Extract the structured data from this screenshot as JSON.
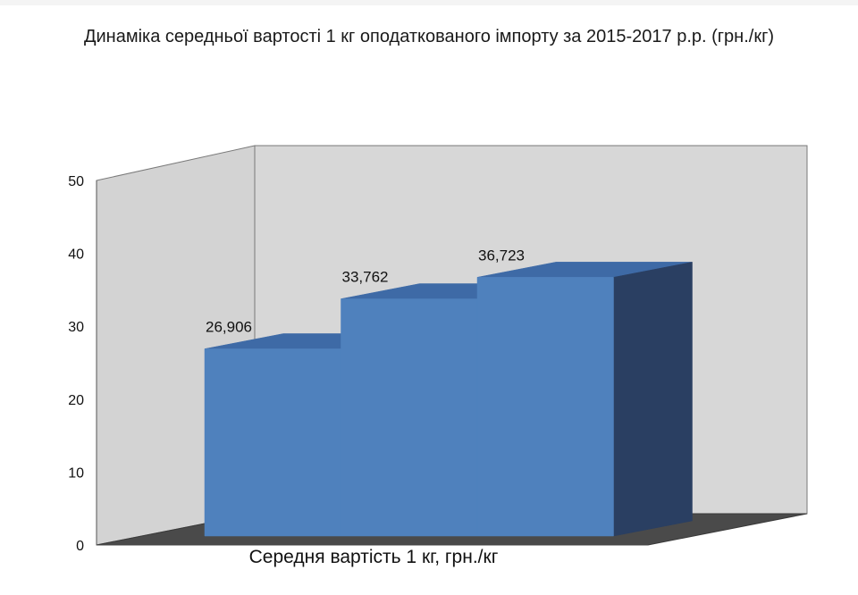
{
  "chart_data": {
    "type": "bar",
    "style": "3d-stepped-area",
    "title": "Динаміка середньої вартості 1 кг оподаткованого імпорту за 2015-2017 р.р. (грн./кг)",
    "xlabel": "Середня вартість 1 кг, грн./кг",
    "ylabel": "",
    "ylim": [
      0,
      50
    ],
    "yticks": [
      "0",
      "10",
      "20",
      "30",
      "40",
      "50"
    ],
    "grid": false,
    "legend": "none",
    "series": [
      {
        "values": [
          26.906,
          33.762,
          36.723
        ],
        "labels": [
          "26,906",
          "33,762",
          "36,723"
        ]
      }
    ],
    "colors": {
      "front": "#4f81bd",
      "top": "#3e6aa6",
      "side": "#2a3f62",
      "wall": "#d7d7d7",
      "floor": "#4a4a4a"
    }
  }
}
